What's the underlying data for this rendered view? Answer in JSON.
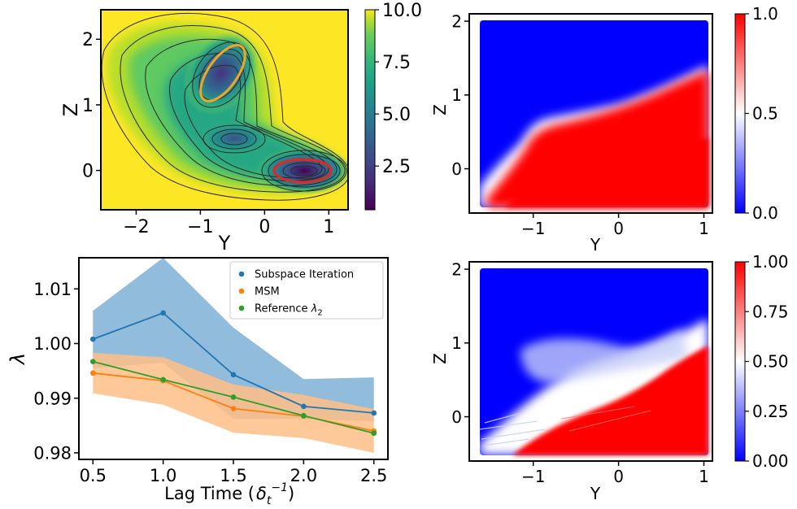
{
  "chart_data": [
    {
      "type": "heatmap",
      "panel": "top-left",
      "title": "",
      "xlabel": "Y",
      "ylabel": "Z",
      "xlim": [
        -2.55,
        1.3
      ],
      "ylim": [
        -0.6,
        2.45
      ],
      "xticks": [
        -2,
        -1,
        0,
        1
      ],
      "xtick_labels": [
        "−2",
        "−1",
        "0",
        "1"
      ],
      "yticks": [
        0,
        1,
        2
      ],
      "ytick_labels": [
        "0",
        "1",
        "2"
      ],
      "colorbar": {
        "range": [
          0.4,
          10.0
        ],
        "ticks": [
          2.5,
          5.0,
          7.5,
          10.0
        ],
        "tick_labels": [
          "2.5",
          "5.0",
          "7.5",
          "10.0"
        ],
        "colormap": "viridis"
      },
      "description_values": {
        "minima": [
          {
            "y": 0.62,
            "z": 0.02,
            "depth": 0.6
          },
          {
            "y": -0.42,
            "z": 0.5,
            "depth": 3.6
          },
          {
            "y": -0.58,
            "z": 1.45,
            "depth": 1.8
          }
        ],
        "highlighted_sets": [
          {
            "center": [
              0.62,
              0.02
            ],
            "color": "#e8261f"
          },
          {
            "center": [
              -0.52,
              1.55
            ],
            "color": "#f2a527"
          }
        ]
      }
    },
    {
      "type": "heatmap",
      "panel": "top-right",
      "title": "",
      "xlabel": "Y",
      "ylabel": "Z",
      "xlim": [
        -1.75,
        1.1
      ],
      "ylim": [
        -0.6,
        2.1
      ],
      "xticks": [
        -1,
        0,
        1
      ],
      "xtick_labels": [
        "−1",
        "0",
        "1"
      ],
      "yticks": [
        0,
        1,
        2
      ],
      "ytick_labels": [
        "0",
        "1",
        "2"
      ],
      "colorbar": {
        "range": [
          0,
          1
        ],
        "ticks": [
          0.0,
          0.5,
          1.0
        ],
        "tick_labels": [
          "0.0",
          "0.5",
          "1.0"
        ],
        "colormap": "bwr"
      }
    },
    {
      "type": "line",
      "panel": "bottom-left",
      "title": "",
      "xlabel": "Lag Time (",
      "xlabel_math": "δ",
      "xlabel_sub": "t",
      "xlabel_sup": "−1",
      "xlabel_close": ")",
      "ylabel": "λ",
      "xlim": [
        0.4,
        2.6
      ],
      "ylim": [
        0.9788,
        1.0157
      ],
      "xticks": [
        0.5,
        1.0,
        1.5,
        2.0,
        2.5
      ],
      "xtick_labels": [
        "0.5",
        "1.0",
        "1.5",
        "2.0",
        "2.5"
      ],
      "yticks": [
        0.98,
        0.99,
        1.0,
        1.01
      ],
      "ytick_labels": [
        "0.98",
        "0.99",
        "1.00",
        "1.01"
      ],
      "legend_placement": "top-right",
      "x": [
        0.5,
        1.0,
        1.5,
        2.0,
        2.5
      ],
      "series": [
        {
          "name": "Subspace Iteration",
          "color": "#1f77b4",
          "values": [
            1.0008,
            1.0056,
            0.9943,
            0.9885,
            0.9873
          ],
          "band_low": [
            0.9955,
            0.9965,
            0.9862,
            0.9862,
            0.9858
          ],
          "band_high": [
            1.006,
            1.0157,
            1.0029,
            0.9935,
            0.9938
          ]
        },
        {
          "name": "MSM",
          "color": "#ff7f0e",
          "values": [
            0.9946,
            0.9932,
            0.9881,
            0.9867,
            0.984
          ],
          "band_low": [
            0.9909,
            0.9888,
            0.9837,
            0.9827,
            0.98
          ],
          "band_high": [
            0.9983,
            0.9975,
            0.9925,
            0.9906,
            0.988
          ]
        },
        {
          "name": "Reference ",
          "name_math": "λ",
          "name_sub": "2",
          "color": "#2ca02c",
          "values": [
            0.9967,
            0.9934,
            0.9902,
            0.9868,
            0.9836
          ]
        }
      ],
      "band_colors": {
        "Subspace Iteration": "#7fb0d6",
        "MSM": "#ffbe86"
      }
    },
    {
      "type": "heatmap",
      "panel": "bottom-right",
      "title": "",
      "xlabel": "Y",
      "ylabel": "Z",
      "xlim": [
        -1.75,
        1.1
      ],
      "ylim": [
        -0.6,
        2.1
      ],
      "xticks": [
        -1,
        0,
        1
      ],
      "xtick_labels": [
        "−1",
        "0",
        "1"
      ],
      "yticks": [
        0,
        1,
        2
      ],
      "ytick_labels": [
        "0",
        "1",
        "2"
      ],
      "colorbar": {
        "range": [
          0,
          1
        ],
        "ticks": [
          0.0,
          0.25,
          0.5,
          0.75,
          1.0
        ],
        "tick_labels": [
          "0.00",
          "0.25",
          "0.50",
          "0.75",
          "1.00"
        ],
        "colormap": "bwr"
      }
    }
  ]
}
